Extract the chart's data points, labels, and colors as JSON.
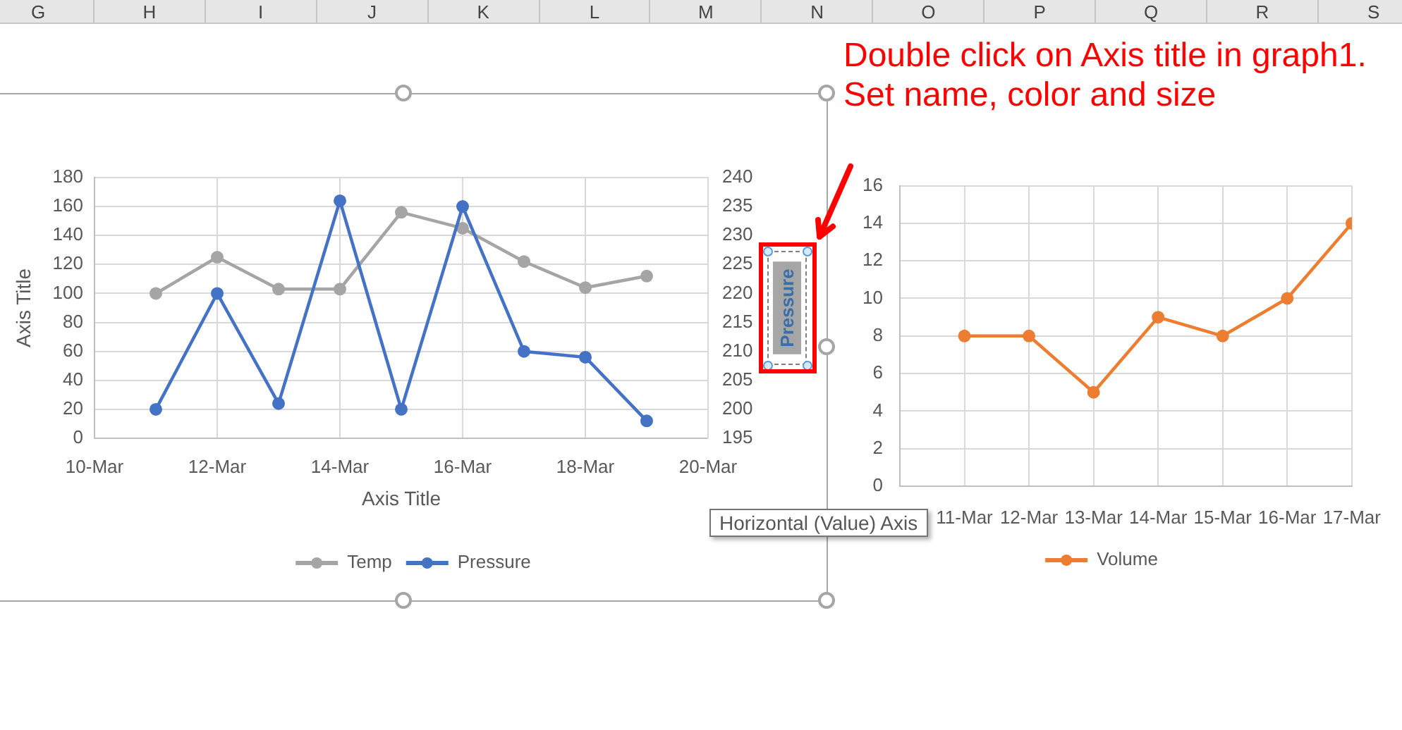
{
  "chart_data": [
    {
      "type": "other",
      "annotations": [
        "G",
        "H",
        "I",
        "J",
        "K",
        "L",
        "M",
        "N",
        "O",
        "P",
        "Q",
        "R",
        "S"
      ]
    },
    {
      "type": "line",
      "x": [
        "--03-11",
        "--03-12",
        "--03-13",
        "--03-14",
        "--03-15",
        "--03-16",
        "--03-17",
        "--03-18",
        "--03-19"
      ],
      "series": [
        {
          "name": "Temp",
          "color": "#a5a5a5",
          "values": [
            100,
            125,
            103,
            103,
            156,
            145,
            122,
            104,
            112
          ]
        },
        {
          "name": "Pressure",
          "color": "#4472c4",
          "axis": "y2",
          "values": [
            200,
            220,
            201,
            236,
            200,
            235,
            210,
            209,
            198
          ]
        }
      ],
      "xlim": [
        "--03-10",
        "--03-20"
      ],
      "xticks": [
        {
          "value": "--03-10",
          "label": "10-Mar"
        },
        {
          "value": "--03-12",
          "label": "12-Mar"
        },
        {
          "value": "--03-14",
          "label": "14-Mar"
        },
        {
          "value": "--03-16",
          "label": "16-Mar"
        },
        {
          "value": "--03-18",
          "label": "18-Mar"
        },
        {
          "value": "--03-20",
          "label": "20-Mar"
        }
      ],
      "ylim": [
        0,
        180
      ],
      "yticks": [
        0,
        20,
        40,
        60,
        80,
        100,
        120,
        140,
        160,
        180
      ],
      "y2lim": [
        195,
        240
      ],
      "y2ticks": [
        195,
        200,
        205,
        210,
        215,
        220,
        225,
        230,
        235,
        240
      ],
      "xlabel": "Axis Title",
      "ylabel": "Axis Title",
      "y2label": "Pressure",
      "grid": true,
      "legend": "bottom",
      "marker": "circle",
      "annotations": [
        "Double click on Axis title in graph1. Set name, color and size"
      ]
    },
    {
      "type": "line",
      "x": [
        "--03-11",
        "--03-12",
        "--03-13",
        "--03-14",
        "--03-15",
        "--03-16",
        "--03-17"
      ],
      "series": [
        {
          "name": "Volume",
          "color": "#ed7d31",
          "values": [
            8,
            8,
            5,
            9,
            8,
            10,
            14
          ]
        }
      ],
      "xlim": [
        "--03-10",
        "--03-17"
      ],
      "xticks": [
        {
          "value": "--03-10",
          "label": null
        },
        {
          "value": "--03-11",
          "label": "11-Mar"
        },
        {
          "value": "--03-12",
          "label": "12-Mar"
        },
        {
          "value": "--03-13",
          "label": "13-Mar"
        },
        {
          "value": "--03-14",
          "label": "14-Mar"
        },
        {
          "value": "--03-15",
          "label": "15-Mar"
        },
        {
          "value": "--03-16",
          "label": "16-Mar"
        },
        {
          "value": "--03-17",
          "label": "17-Mar"
        }
      ],
      "ylim": [
        0,
        16
      ],
      "yticks": [
        0,
        2,
        4,
        6,
        8,
        10,
        12,
        14,
        16
      ],
      "grid": true,
      "legend": "bottom",
      "marker": "circle",
      "annotations": [
        "Horizontal (Value) Axis"
      ]
    }
  ]
}
